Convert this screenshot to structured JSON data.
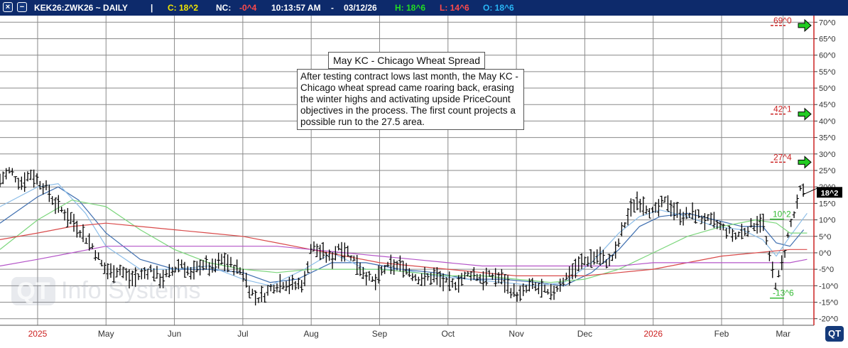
{
  "header": {
    "close_icon": "×",
    "minus_icon": "−",
    "symbol": "KEK26:ZWK26 ~ DAILY",
    "separator": "|",
    "close_label": "C: 18^2",
    "net_change_label": "NC:",
    "net_change_value": "-0^4",
    "time": "10:13:57 AM",
    "dash": "-",
    "date": "03/12/26",
    "high": "H: 18^6",
    "low": "L: 14^6",
    "open": "O: 18^6",
    "colors": {
      "bg": "#0d2a6b",
      "close": "#f2e600",
      "nc": "#ff4a4a",
      "high": "#22dd22",
      "low": "#ff4a4a",
      "open": "#29b6f6"
    }
  },
  "annotation": {
    "title": "May KC - Chicago Wheat Spread",
    "body": "After testing contract lows last month, the May KC - Chicago wheat spread came roaring back, erasing the winter highs and activating upside PriceCount objectives in the process.  The first count projects a possible run to the 27.5 area."
  },
  "watermark": {
    "logo": "QT",
    "text": "Info Systems"
  },
  "logo_badge": "QT",
  "chart_data": {
    "type": "bar",
    "style": "OHLC daily bars with moving averages",
    "y_axis": {
      "ticks": [
        70,
        65,
        60,
        55,
        50,
        45,
        40,
        35,
        30,
        25,
        20,
        15,
        10,
        5,
        0,
        -5,
        -10,
        -15,
        -20
      ],
      "tick_labels": [
        "70^0",
        "65^0",
        "60^0",
        "55^0",
        "50^0",
        "45^0",
        "40^0",
        "35^0",
        "30^0",
        "25^0",
        "20^0",
        "15^0",
        "10^0",
        "5^0",
        "0^0",
        "-5^0",
        "-10^0",
        "-15^0",
        "-20^0"
      ],
      "range": [
        -22,
        72
      ],
      "position": "right"
    },
    "x_axis": {
      "months": [
        {
          "label": "2025",
          "t": 0.0,
          "color": "#cc2222"
        },
        {
          "label": "May",
          "t": 1.0,
          "color": "#333333"
        },
        {
          "label": "Jun",
          "t": 2.0,
          "color": "#333333"
        },
        {
          "label": "Jul",
          "t": 3.0,
          "color": "#333333"
        },
        {
          "label": "Aug",
          "t": 4.0,
          "color": "#333333"
        },
        {
          "label": "Sep",
          "t": 5.0,
          "color": "#333333"
        },
        {
          "label": "Oct",
          "t": 6.0,
          "color": "#333333"
        },
        {
          "label": "Nov",
          "t": 7.0,
          "color": "#333333"
        },
        {
          "label": "Dec",
          "t": 8.0,
          "color": "#333333"
        },
        {
          "label": "2026",
          "t": 9.0,
          "color": "#cc2222"
        },
        {
          "label": "Feb",
          "t": 10.0,
          "color": "#333333"
        },
        {
          "label": "Mar",
          "t": 10.9,
          "color": "#333333"
        }
      ],
      "range": [
        -0.55,
        11.35
      ]
    },
    "price_series": [
      [
        -0.55,
        22
      ],
      [
        -0.4,
        25
      ],
      [
        -0.25,
        21
      ],
      [
        -0.1,
        24
      ],
      [
        0.05,
        21
      ],
      [
        0.15,
        19
      ],
      [
        0.25,
        15
      ],
      [
        0.35,
        13
      ],
      [
        0.5,
        10
      ],
      [
        0.65,
        6
      ],
      [
        0.8,
        2
      ],
      [
        0.95,
        -4
      ],
      [
        1.05,
        -6
      ],
      [
        1.2,
        -5
      ],
      [
        1.35,
        -8
      ],
      [
        1.5,
        -7
      ],
      [
        1.65,
        -5
      ],
      [
        1.8,
        -8
      ],
      [
        1.95,
        -6
      ],
      [
        2.1,
        -3
      ],
      [
        2.25,
        -7
      ],
      [
        2.4,
        -3
      ],
      [
        2.55,
        -5
      ],
      [
        2.7,
        -2
      ],
      [
        2.85,
        -4
      ],
      [
        3.0,
        -6
      ],
      [
        3.1,
        -11
      ],
      [
        3.2,
        -14
      ],
      [
        3.3,
        -13
      ],
      [
        3.45,
        -10
      ],
      [
        3.6,
        -9
      ],
      [
        3.75,
        -10
      ],
      [
        3.9,
        -9
      ],
      [
        4.0,
        2
      ],
      [
        4.15,
        0
      ],
      [
        4.3,
        -2
      ],
      [
        4.4,
        2
      ],
      [
        4.55,
        0
      ],
      [
        4.7,
        -4
      ],
      [
        4.85,
        -8
      ],
      [
        4.95,
        -9
      ],
      [
        5.05,
        -5
      ],
      [
        5.2,
        -4
      ],
      [
        5.35,
        -4
      ],
      [
        5.5,
        -7
      ],
      [
        5.65,
        -8
      ],
      [
        5.8,
        -7
      ],
      [
        5.95,
        -9
      ],
      [
        6.05,
        -10
      ],
      [
        6.2,
        -8
      ],
      [
        6.35,
        -6
      ],
      [
        6.5,
        -8
      ],
      [
        6.65,
        -7
      ],
      [
        6.8,
        -8
      ],
      [
        6.95,
        -12
      ],
      [
        7.05,
        -13
      ],
      [
        7.2,
        -10
      ],
      [
        7.35,
        -11
      ],
      [
        7.5,
        -13
      ],
      [
        7.65,
        -9
      ],
      [
        7.8,
        -6
      ],
      [
        7.95,
        -3
      ],
      [
        8.05,
        -2
      ],
      [
        8.2,
        -1
      ],
      [
        8.35,
        -3
      ],
      [
        8.45,
        0
      ],
      [
        8.55,
        7
      ],
      [
        8.65,
        12
      ],
      [
        8.75,
        16
      ],
      [
        8.85,
        15
      ],
      [
        9.0,
        12
      ],
      [
        9.1,
        14
      ],
      [
        9.2,
        16
      ],
      [
        9.3,
        13
      ],
      [
        9.45,
        11
      ],
      [
        9.6,
        12
      ],
      [
        9.75,
        10
      ],
      [
        9.9,
        9
      ],
      [
        10.05,
        7
      ],
      [
        10.2,
        5
      ],
      [
        10.35,
        7
      ],
      [
        10.5,
        9
      ],
      [
        10.6,
        10
      ],
      [
        10.7,
        -2
      ],
      [
        10.8,
        -10
      ],
      [
        10.9,
        -2
      ],
      [
        11.0,
        8
      ],
      [
        11.1,
        14
      ],
      [
        11.15,
        19
      ],
      [
        11.22,
        18
      ]
    ],
    "moving_averages": [
      {
        "name": "",
        "color": "#3f6fb0",
        "points": [
          [
            -0.55,
            9
          ],
          [
            0.0,
            17
          ],
          [
            0.3,
            20
          ],
          [
            0.6,
            16
          ],
          [
            1.0,
            6
          ],
          [
            1.5,
            -2
          ],
          [
            2.0,
            -5
          ],
          [
            2.5,
            -5
          ],
          [
            3.0,
            -6
          ],
          [
            3.4,
            -9
          ],
          [
            3.8,
            -8
          ],
          [
            4.3,
            -3
          ],
          [
            4.8,
            -3
          ],
          [
            5.3,
            -5
          ],
          [
            5.8,
            -6
          ],
          [
            6.3,
            -8
          ],
          [
            6.8,
            -8
          ],
          [
            7.3,
            -9
          ],
          [
            7.7,
            -10
          ],
          [
            8.1,
            -6
          ],
          [
            8.5,
            1
          ],
          [
            8.8,
            8
          ],
          [
            9.1,
            11
          ],
          [
            9.5,
            12
          ],
          [
            9.9,
            10
          ],
          [
            10.3,
            8
          ],
          [
            10.6,
            8
          ],
          [
            10.8,
            3
          ],
          [
            11.0,
            2
          ],
          [
            11.2,
            7
          ]
        ]
      },
      {
        "name": "",
        "color": "#8cbde8",
        "points": [
          [
            -0.55,
            14
          ],
          [
            0.0,
            20
          ],
          [
            0.3,
            21
          ],
          [
            0.7,
            12
          ],
          [
            1.0,
            2
          ],
          [
            1.5,
            -5
          ],
          [
            2.0,
            -5
          ],
          [
            2.5,
            -4
          ],
          [
            3.0,
            -8
          ],
          [
            3.4,
            -10
          ],
          [
            3.9,
            -5
          ],
          [
            4.3,
            0
          ],
          [
            4.8,
            -5
          ],
          [
            5.3,
            -5
          ],
          [
            5.8,
            -7
          ],
          [
            6.3,
            -8
          ],
          [
            6.8,
            -9
          ],
          [
            7.3,
            -10
          ],
          [
            7.7,
            -9
          ],
          [
            8.1,
            -3
          ],
          [
            8.5,
            6
          ],
          [
            8.8,
            11
          ],
          [
            9.1,
            13
          ],
          [
            9.5,
            11
          ],
          [
            9.9,
            8
          ],
          [
            10.3,
            7
          ],
          [
            10.6,
            4
          ],
          [
            10.8,
            -1
          ],
          [
            11.0,
            5
          ],
          [
            11.25,
            12
          ]
        ]
      },
      {
        "name": "",
        "color": "#7cd67c",
        "points": [
          [
            -0.55,
            1
          ],
          [
            0.0,
            10
          ],
          [
            0.5,
            16
          ],
          [
            1.0,
            14
          ],
          [
            1.5,
            7
          ],
          [
            2.0,
            1
          ],
          [
            2.5,
            -3
          ],
          [
            3.0,
            -5
          ],
          [
            3.5,
            -6
          ],
          [
            4.0,
            -5
          ],
          [
            4.5,
            -5
          ],
          [
            5.0,
            -5
          ],
          [
            5.5,
            -6
          ],
          [
            6.0,
            -7
          ],
          [
            6.5,
            -7
          ],
          [
            7.0,
            -8
          ],
          [
            7.5,
            -9
          ],
          [
            8.0,
            -8
          ],
          [
            8.5,
            -5
          ],
          [
            9.0,
            0
          ],
          [
            9.5,
            5
          ],
          [
            10.0,
            8
          ],
          [
            10.5,
            10
          ],
          [
            10.8,
            9
          ],
          [
            11.0,
            6
          ],
          [
            11.25,
            6
          ]
        ]
      },
      {
        "name": "",
        "color": "#d94a4a",
        "points": [
          [
            -0.55,
            4
          ],
          [
            0.0,
            6
          ],
          [
            0.5,
            8
          ],
          [
            1.0,
            9
          ],
          [
            1.5,
            8
          ],
          [
            2.0,
            7
          ],
          [
            2.5,
            6
          ],
          [
            3.0,
            5
          ],
          [
            3.5,
            3
          ],
          [
            4.0,
            1
          ],
          [
            4.5,
            -1
          ],
          [
            5.0,
            -3
          ],
          [
            5.5,
            -4
          ],
          [
            6.0,
            -5
          ],
          [
            6.5,
            -6
          ],
          [
            7.0,
            -7
          ],
          [
            7.5,
            -7
          ],
          [
            8.0,
            -7
          ],
          [
            8.5,
            -6
          ],
          [
            9.0,
            -5
          ],
          [
            9.5,
            -3
          ],
          [
            10.0,
            -1
          ],
          [
            10.5,
            0
          ],
          [
            11.0,
            1
          ],
          [
            11.25,
            1
          ]
        ]
      },
      {
        "name": "",
        "color": "#b455c8",
        "points": [
          [
            -0.55,
            -4
          ],
          [
            0.0,
            -2
          ],
          [
            0.5,
            0
          ],
          [
            1.0,
            2
          ],
          [
            1.5,
            2
          ],
          [
            2.0,
            2
          ],
          [
            2.5,
            2
          ],
          [
            3.0,
            2
          ],
          [
            3.5,
            2
          ],
          [
            4.0,
            1
          ],
          [
            4.5,
            0
          ],
          [
            5.0,
            -1
          ],
          [
            5.5,
            -2
          ],
          [
            6.0,
            -3
          ],
          [
            6.5,
            -4
          ],
          [
            7.0,
            -4
          ],
          [
            7.5,
            -4
          ],
          [
            8.0,
            -4
          ],
          [
            8.5,
            -4
          ],
          [
            9.0,
            -3
          ],
          [
            9.5,
            -3
          ],
          [
            10.0,
            -3
          ],
          [
            10.5,
            -3
          ],
          [
            11.0,
            -3
          ],
          [
            11.25,
            -2
          ]
        ]
      }
    ],
    "objectives": [
      {
        "label": "69^0",
        "value": 69.0,
        "color": "#cc2222"
      },
      {
        "label": "42^1",
        "value": 42.1,
        "color": "#cc2222"
      },
      {
        "label": "27^4",
        "value": 27.5,
        "color": "#cc2222"
      },
      {
        "label": "10^2",
        "value": 10.2,
        "color": "#33bb33"
      },
      {
        "label": "-13^6",
        "value": -13.75,
        "color": "#33bb33"
      }
    ],
    "arrows": [
      69.0,
      42.1,
      27.5
    ],
    "last_price": {
      "label": "18^2",
      "value": 18.25
    },
    "grid": true
  }
}
